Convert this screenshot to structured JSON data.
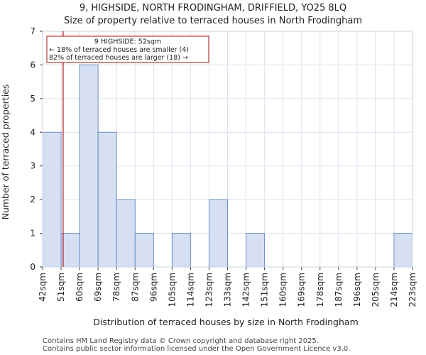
{
  "chart_data": {
    "type": "bar",
    "title_line1": "9, HIGHSIDE, NORTH FRODINGHAM, DRIFFIELD, YO25 8LQ",
    "title_line2": "Size of property relative to terraced houses in North Frodingham",
    "xlabel": "Distribution of terraced houses by size in North Frodingham",
    "ylabel": "Number of terraced properties",
    "bin_edges": [
      42,
      51,
      60,
      69,
      78,
      87,
      96,
      105,
      114,
      123,
      133,
      142,
      151,
      160,
      169,
      178,
      187,
      196,
      205,
      214,
      223
    ],
    "x_tick_labels": [
      "42sqm",
      "51sqm",
      "60sqm",
      "69sqm",
      "78sqm",
      "87sqm",
      "96sqm",
      "105sqm",
      "114sqm",
      "123sqm",
      "133sqm",
      "142sqm",
      "151sqm",
      "160sqm",
      "169sqm",
      "178sqm",
      "187sqm",
      "196sqm",
      "205sqm",
      "214sqm",
      "223sqm"
    ],
    "values": [
      4,
      1,
      6,
      4,
      2,
      1,
      0,
      1,
      0,
      2,
      0,
      1,
      0,
      0,
      0,
      0,
      0,
      0,
      0,
      1
    ],
    "ylim": [
      0,
      7
    ],
    "y_ticks": [
      0,
      1,
      2,
      3,
      4,
      5,
      6,
      7
    ],
    "grid": true,
    "bar_fill": "#d6e0f2",
    "bar_stroke": "#6e8fc9",
    "grid_color": "#dce3ef",
    "marker": {
      "value": 52,
      "color": "#aa1111",
      "annotation": [
        "9 HIGHSIDE: 52sqm",
        "← 18% of terraced houses are smaller (4)",
        "82% of terraced houses are larger (18) →"
      ]
    }
  },
  "footer": {
    "line1": "Contains HM Land Registry data © Crown copyright and database right 2025.",
    "line2": "Contains public sector information licensed under the Open Government Licence v3.0."
  }
}
